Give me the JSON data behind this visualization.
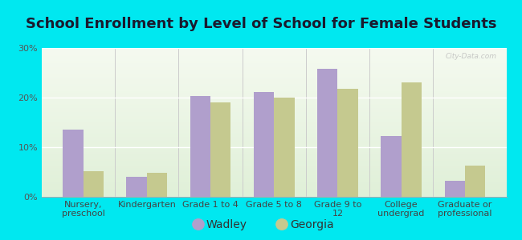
{
  "title": "School Enrollment by Level of School for Female Students",
  "categories": [
    "Nursery,\npreschool",
    "Kindergarten",
    "Grade 1 to 4",
    "Grade 5 to 8",
    "Grade 9 to\n12",
    "College\nundergrad",
    "Graduate or\nprofessional"
  ],
  "wadley": [
    13.5,
    4.0,
    20.3,
    21.2,
    25.8,
    12.3,
    3.2
  ],
  "georgia": [
    5.2,
    4.8,
    19.0,
    20.0,
    21.8,
    23.0,
    6.3
  ],
  "wadley_color": "#b09fcc",
  "georgia_color": "#c5c98f",
  "background_color": "#00e8f0",
  "plot_bg_top": "#f5faf0",
  "plot_bg_bottom": "#e0f0d8",
  "ylim": [
    0,
    30
  ],
  "yticks": [
    0,
    10,
    20,
    30
  ],
  "ytick_labels": [
    "0%",
    "10%",
    "20%",
    "30%"
  ],
  "legend_labels": [
    "Wadley",
    "Georgia"
  ],
  "title_fontsize": 13,
  "tick_fontsize": 8,
  "legend_fontsize": 10,
  "bar_width": 0.32
}
